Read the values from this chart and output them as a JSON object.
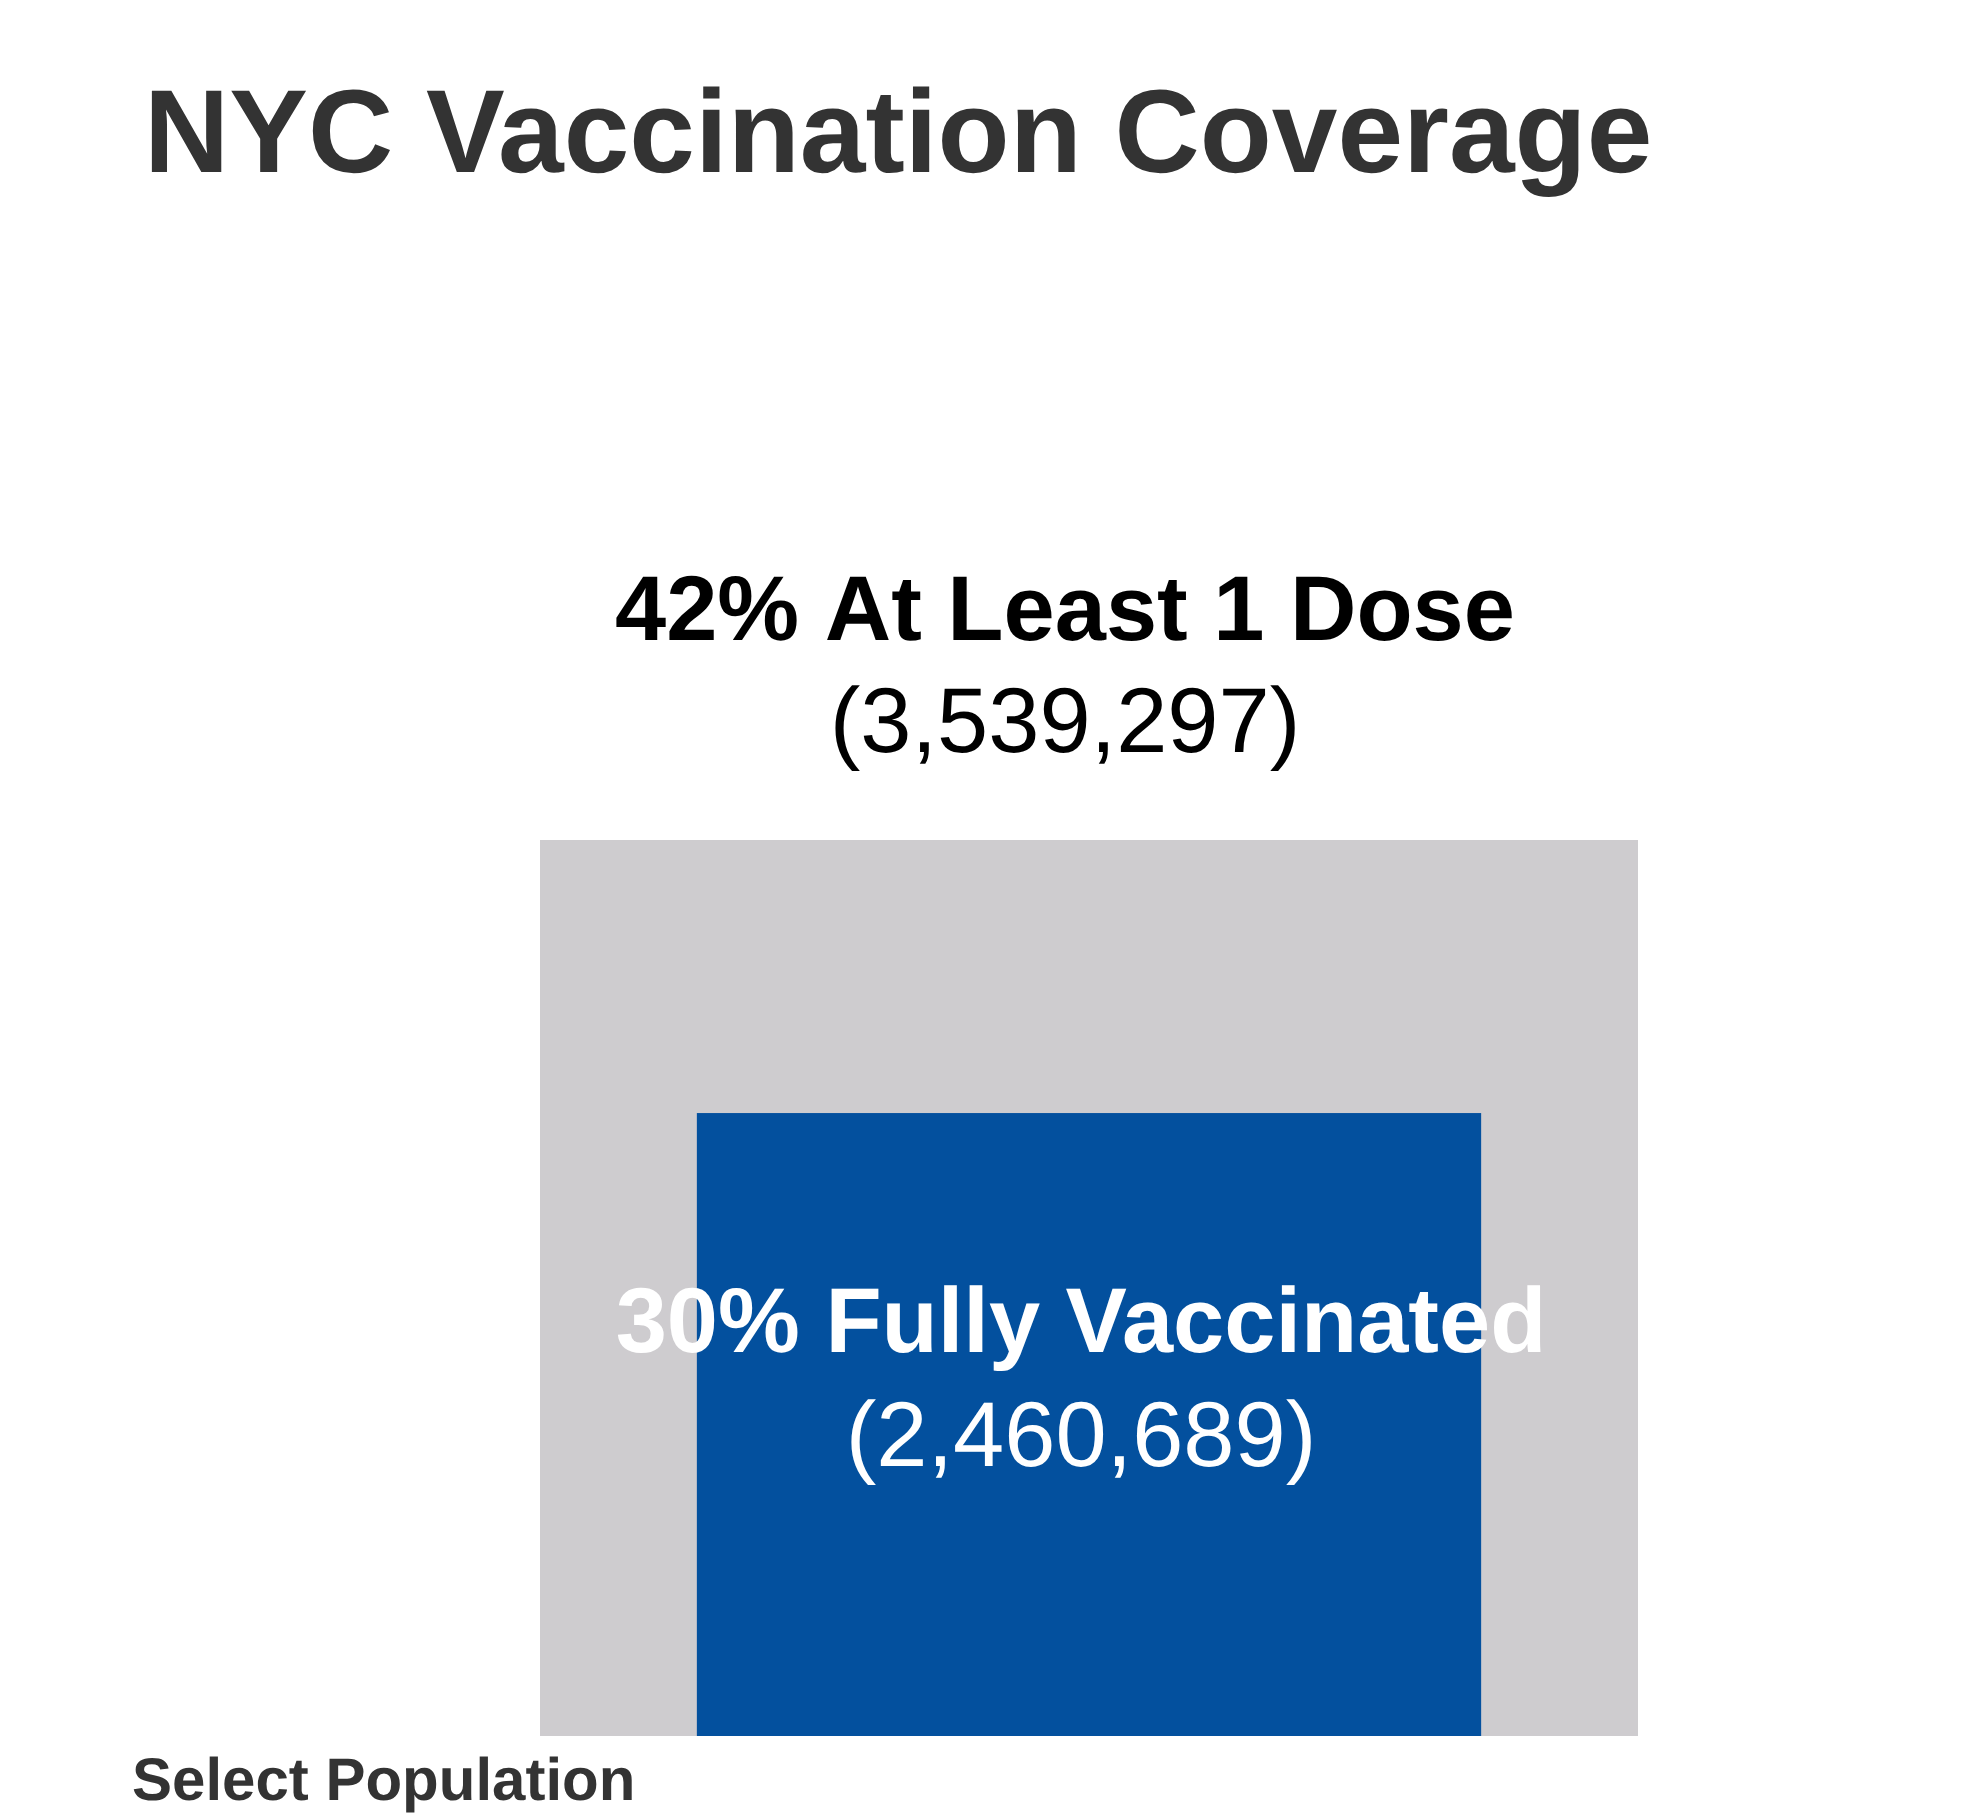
{
  "chart_data": {
    "type": "other",
    "title": "NYC Vaccination Coverage",
    "categories": [
      "At Least 1 Dose",
      "Fully Vaccinated"
    ],
    "colors": [
      "#cecccf",
      "#03509e"
    ],
    "series": [
      {
        "values": [
          42,
          30
        ],
        "value_labels": [
          "42%",
          "30%"
        ]
      },
      {
        "values": [
          3539297,
          2460689
        ],
        "value_labels": [
          "(3,539,297)",
          "(2,460,689)"
        ]
      }
    ],
    "annotations": [
      "Select Population"
    ]
  }
}
